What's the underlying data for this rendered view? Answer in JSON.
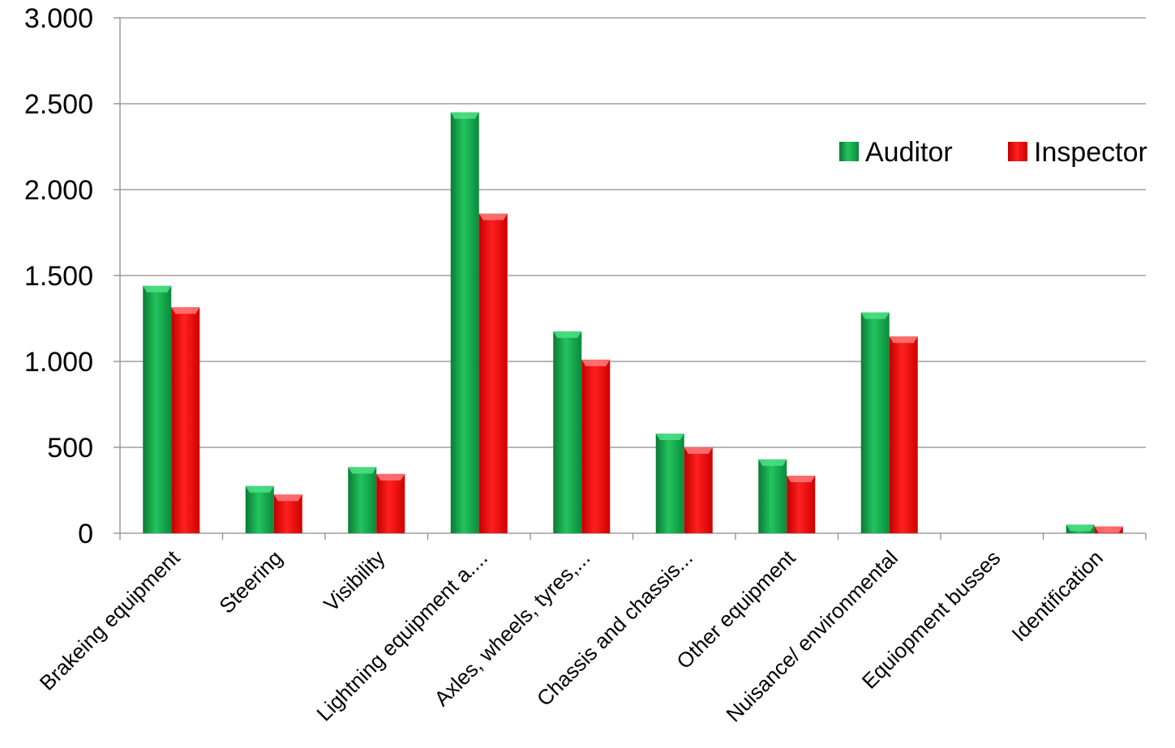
{
  "chart_data": {
    "type": "bar",
    "title": "",
    "xlabel": "",
    "ylabel": "",
    "ylim": [
      0,
      3000
    ],
    "yticks": [
      0,
      500,
      1000,
      1500,
      2000,
      2500,
      3000
    ],
    "ytick_labels": [
      "0",
      "500",
      "1.000",
      "1.500",
      "2.000",
      "2.500",
      "3.000"
    ],
    "grid": true,
    "legend_position": "top-right",
    "categories": [
      "Brakeing equipment",
      "Steering",
      "Visibility",
      "Lightning equipment a....",
      "Axles, wheels, tyres,...",
      "Chassis and chassis...",
      "Other equipment",
      "Nuisance/ environmental",
      "Equiopment busses",
      "Identification"
    ],
    "series": [
      {
        "name": "Auditor",
        "color": "#16a34a",
        "values": [
          1440,
          275,
          385,
          2450,
          1175,
          580,
          430,
          1285,
          0,
          50
        ]
      },
      {
        "name": "Inspector",
        "color": "#ff0000",
        "values": [
          1315,
          225,
          345,
          1860,
          1010,
          500,
          335,
          1145,
          0,
          40
        ]
      }
    ]
  }
}
